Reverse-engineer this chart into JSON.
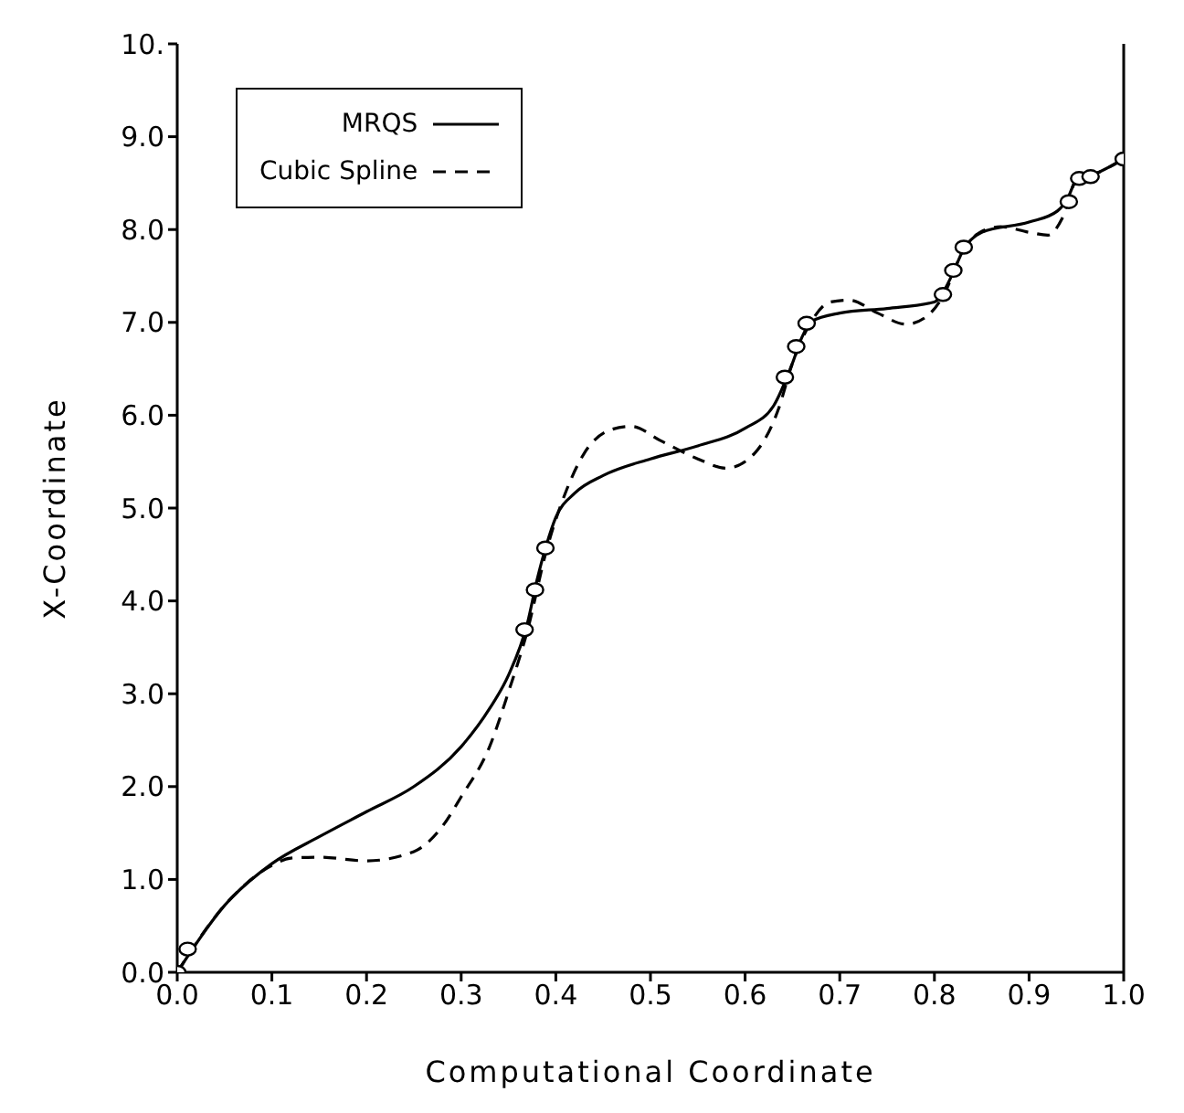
{
  "chart_data": {
    "type": "line",
    "xlabel": "Computational Coordinate",
    "ylabel": "X-Coordinate",
    "xlim": [
      0,
      1
    ],
    "ylim": [
      0,
      10
    ],
    "xticks": [
      {
        "value": 0,
        "label": "0.0"
      },
      {
        "value": 0.1,
        "label": "0.1"
      },
      {
        "value": 0.2,
        "label": "0.2"
      },
      {
        "value": 0.3,
        "label": "0.3"
      },
      {
        "value": 0.4,
        "label": "0.4"
      },
      {
        "value": 0.5,
        "label": "0.5"
      },
      {
        "value": 0.6,
        "label": "0.6"
      },
      {
        "value": 0.7,
        "label": "0.7"
      },
      {
        "value": 0.8,
        "label": "0.8"
      },
      {
        "value": 0.9,
        "label": "0.9"
      },
      {
        "value": 1,
        "label": "1.0"
      }
    ],
    "yticks": [
      {
        "value": 0,
        "label": "0.0"
      },
      {
        "value": 1,
        "label": "1.0"
      },
      {
        "value": 2,
        "label": "2.0"
      },
      {
        "value": 3,
        "label": "3.0"
      },
      {
        "value": 4,
        "label": "4.0"
      },
      {
        "value": 5,
        "label": "5.0"
      },
      {
        "value": 6,
        "label": "6.0"
      },
      {
        "value": 7,
        "label": "7.0"
      },
      {
        "value": 8,
        "label": "8.0"
      },
      {
        "value": 9,
        "label": "9.0"
      },
      {
        "value": 10,
        "label": "10."
      }
    ],
    "grid": false,
    "legend": "top left",
    "marker": "none",
    "series": [
      {
        "name": "MRQS",
        "color": "#000000",
        "line_style": "solid",
        "x": [
          0,
          0.05,
          0.1,
          0.15,
          0.2,
          0.25,
          0.3,
          0.33,
          0.35,
          0.37,
          0.38,
          0.39,
          0.4,
          0.42,
          0.45,
          0.5,
          0.55,
          0.6,
          0.63,
          0.65,
          0.66,
          0.67,
          0.7,
          0.75,
          0.8,
          0.81,
          0.82,
          0.83,
          0.85,
          0.9,
          0.93,
          0.94,
          0.95,
          0.97,
          1
        ],
        "values": [
          0,
          0.72,
          1.17,
          1.46,
          1.73,
          2.0,
          2.43,
          2.84,
          3.2,
          3.76,
          4.22,
          4.6,
          4.9,
          5.16,
          5.35,
          5.53,
          5.67,
          5.86,
          6.1,
          6.56,
          6.84,
          7.01,
          7.1,
          7.15,
          7.22,
          7.34,
          7.54,
          7.77,
          7.97,
          8.08,
          8.2,
          8.32,
          8.53,
          8.6,
          8.76
        ]
      },
      {
        "name": "Cubic Spline",
        "color": "#000000",
        "line_style": "dashed",
        "x": [
          0,
          0.05,
          0.1,
          0.12,
          0.15,
          0.2,
          0.25,
          0.28,
          0.3,
          0.33,
          0.35,
          0.37,
          0.39,
          0.41,
          0.43,
          0.46,
          0.48,
          0.51,
          0.55,
          0.58,
          0.61,
          0.635,
          0.65,
          0.67,
          0.69,
          0.71,
          0.74,
          0.77,
          0.79,
          0.81,
          0.83,
          0.85,
          0.87,
          0.9,
          0.92,
          0.935,
          0.95,
          0.97,
          1
        ],
        "values": [
          0,
          0.72,
          1.15,
          1.23,
          1.24,
          1.2,
          1.3,
          1.57,
          1.89,
          2.43,
          3.02,
          3.68,
          4.54,
          5.16,
          5.59,
          5.85,
          5.88,
          5.73,
          5.53,
          5.43,
          5.59,
          6.06,
          6.56,
          7.01,
          7.22,
          7.24,
          7.1,
          6.98,
          7.05,
          7.3,
          7.77,
          7.98,
          8.03,
          7.97,
          7.94,
          8.12,
          8.53,
          8.6,
          8.76
        ]
      },
      {
        "type": "scatter",
        "color": "#000000",
        "marker": "circle",
        "x": [
          0,
          0.011,
          0.367,
          0.378,
          0.389,
          0.642,
          0.654,
          0.665,
          0.809,
          0.82,
          0.831,
          0.942,
          0.953,
          0.965,
          1
        ],
        "values": [
          0,
          0.25,
          3.69,
          4.12,
          4.57,
          6.41,
          6.74,
          6.99,
          7.3,
          7.56,
          7.81,
          8.3,
          8.55,
          8.57,
          8.76
        ]
      }
    ]
  }
}
